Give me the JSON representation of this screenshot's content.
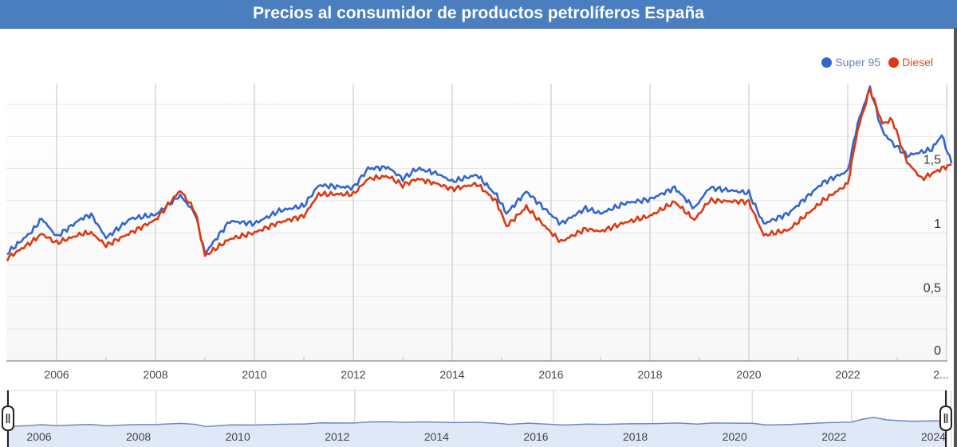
{
  "header": {
    "title": "Precios al consumidor de productos petrolíferos España"
  },
  "legend": {
    "items": [
      {
        "label": "Super 95",
        "color": "#3366cc"
      },
      {
        "label": "Diesel",
        "color": "#dc3912"
      }
    ]
  },
  "y_axis": {
    "labels": [
      "0",
      "0,5",
      "1",
      "1,5"
    ]
  },
  "x_axis": {
    "labels": [
      "2006",
      "2008",
      "2010",
      "2012",
      "2014",
      "2016",
      "2018",
      "2020",
      "2022",
      "2..."
    ]
  },
  "range_selector": {
    "labels": [
      "2006",
      "2008",
      "2010",
      "2012",
      "2014",
      "2016",
      "2018",
      "2020",
      "2022",
      "2024"
    ],
    "left_handle": "range-start",
    "right_handle": "range-end"
  },
  "chart_data": {
    "type": "line",
    "title": "Precios al consumidor de productos petrolíferos España",
    "xlabel": "",
    "ylabel": "",
    "ylim": [
      0,
      2.2
    ],
    "xlim": [
      2005.0,
      2024.2
    ],
    "grid": true,
    "legend_position": "top-right",
    "y_ticks": [
      0,
      0.5,
      1,
      1.5
    ],
    "x_ticks": [
      2006,
      2008,
      2010,
      2012,
      2014,
      2016,
      2018,
      2020,
      2022,
      2024
    ],
    "series": [
      {
        "name": "Super 95",
        "color": "#3366cc",
        "x": [
          2005.0,
          2005.5,
          2005.7,
          2006.0,
          2006.5,
          2006.7,
          2007.0,
          2007.5,
          2008.0,
          2008.5,
          2008.8,
          2009.0,
          2009.5,
          2010.0,
          2010.5,
          2011.0,
          2011.3,
          2012.0,
          2012.3,
          2012.7,
          2013.0,
          2013.3,
          2013.7,
          2014.0,
          2014.5,
          2014.9,
          2015.1,
          2015.5,
          2016.0,
          2016.2,
          2016.7,
          2017.0,
          2017.5,
          2018.0,
          2018.5,
          2018.9,
          2019.2,
          2020.0,
          2020.3,
          2020.8,
          2021.5,
          2022.0,
          2022.2,
          2022.45,
          2022.7,
          2022.9,
          2023.2,
          2023.7,
          2023.9,
          2024.1
        ],
        "values": [
          0.84,
          1.01,
          1.11,
          0.97,
          1.11,
          1.14,
          0.96,
          1.11,
          1.14,
          1.29,
          1.15,
          0.84,
          1.09,
          1.07,
          1.17,
          1.21,
          1.37,
          1.35,
          1.5,
          1.51,
          1.42,
          1.5,
          1.46,
          1.4,
          1.45,
          1.29,
          1.15,
          1.32,
          1.14,
          1.07,
          1.19,
          1.15,
          1.23,
          1.26,
          1.35,
          1.19,
          1.35,
          1.31,
          1.07,
          1.15,
          1.39,
          1.48,
          1.85,
          2.13,
          1.79,
          1.7,
          1.6,
          1.65,
          1.76,
          1.54
        ]
      },
      {
        "name": "Diesel",
        "color": "#dc3912",
        "x": [
          2005.0,
          2005.5,
          2005.7,
          2006.0,
          2006.5,
          2006.7,
          2007.0,
          2007.5,
          2008.0,
          2008.5,
          2008.8,
          2009.0,
          2009.5,
          2010.0,
          2010.5,
          2011.0,
          2011.3,
          2012.0,
          2012.3,
          2012.7,
          2013.0,
          2013.3,
          2013.7,
          2014.0,
          2014.5,
          2014.9,
          2015.1,
          2015.5,
          2016.0,
          2016.2,
          2016.7,
          2017.0,
          2017.5,
          2018.0,
          2018.5,
          2018.9,
          2019.2,
          2020.0,
          2020.3,
          2020.8,
          2021.5,
          2022.0,
          2022.2,
          2022.45,
          2022.7,
          2022.9,
          2023.2,
          2023.5,
          2023.9,
          2024.1
        ],
        "values": [
          0.8,
          0.93,
          0.99,
          0.92,
          0.99,
          1.0,
          0.9,
          1.0,
          1.1,
          1.33,
          1.17,
          0.82,
          0.95,
          1.0,
          1.08,
          1.13,
          1.3,
          1.3,
          1.42,
          1.44,
          1.37,
          1.42,
          1.38,
          1.34,
          1.38,
          1.24,
          1.05,
          1.2,
          1.0,
          0.93,
          1.03,
          1.01,
          1.08,
          1.13,
          1.24,
          1.1,
          1.25,
          1.24,
          0.98,
          1.02,
          1.25,
          1.38,
          1.8,
          2.12,
          1.85,
          1.88,
          1.55,
          1.42,
          1.5,
          1.53
        ]
      }
    ]
  }
}
